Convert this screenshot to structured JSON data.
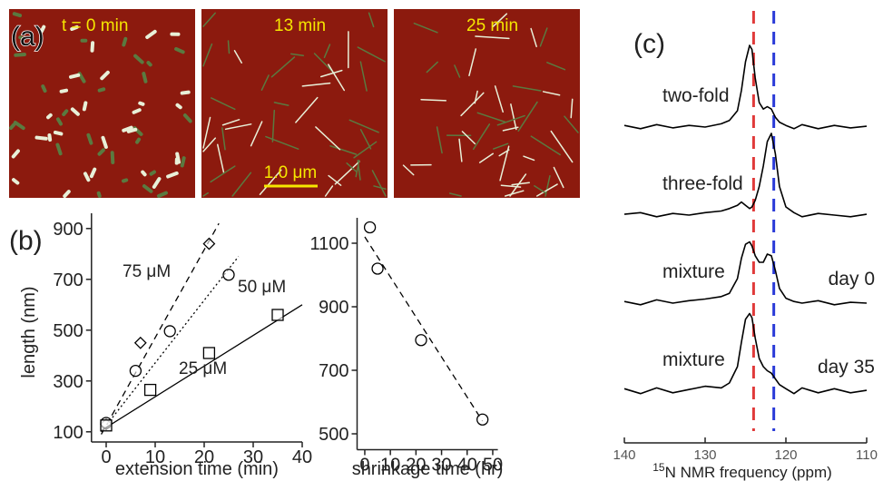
{
  "panel_labels": [
    "(a)",
    "(b)",
    "(c)"
  ],
  "images": [
    {
      "label": "t = 0 min"
    },
    {
      "label": "13 min"
    },
    {
      "label": "25 min"
    }
  ],
  "scale_bar": "1.0 μm",
  "chart_data": [
    {
      "type": "scatter",
      "x_label": "extension time (min)",
      "y_label": "length (nm)",
      "xlim": [
        -3,
        40
      ],
      "xticks": [
        0,
        10,
        20,
        30,
        40
      ],
      "ylim": [
        60,
        960
      ],
      "yticks": [
        100,
        300,
        500,
        700,
        900
      ],
      "series": [
        {
          "name": "75 μM",
          "marker": "diamond",
          "color": "#000000",
          "x": [
            0,
            7,
            21
          ],
          "values": [
            130,
            450,
            840
          ],
          "fit": {
            "dash": "dashed",
            "x": [
              -1,
              23
            ],
            "values": [
              90,
              920
            ]
          }
        },
        {
          "name": "50 μM",
          "marker": "circle",
          "color": "#000000",
          "x": [
            0,
            6,
            13,
            25
          ],
          "values": [
            135,
            340,
            496,
            718
          ],
          "fit": {
            "dash": "dotted",
            "x": [
              -1,
              27
            ],
            "values": [
              100,
              790
            ]
          }
        },
        {
          "name": "25 μM",
          "marker": "square",
          "color": "#000000",
          "x": [
            0,
            9,
            21,
            35
          ],
          "values": [
            125,
            265,
            410,
            560
          ],
          "fit": {
            "dash": "solid",
            "x": [
              -1,
              40
            ],
            "values": [
              105,
              600
            ]
          }
        }
      ]
    },
    {
      "type": "scatter",
      "x_label": "shrinkage time (hr)",
      "xlim": [
        -3,
        52
      ],
      "xticks": [
        0,
        10,
        20,
        30,
        40,
        50
      ],
      "ylim": [
        450,
        1180
      ],
      "yticks": [
        500,
        700,
        900,
        1100
      ],
      "series": [
        {
          "marker": "circle",
          "color": "#000000",
          "x": [
            2,
            5,
            22,
            46
          ],
          "values": [
            1150,
            1020,
            795,
            545
          ],
          "fit": {
            "dash": "dashed",
            "x": [
              0,
              46
            ],
            "values": [
              1120,
              540
            ]
          }
        }
      ]
    },
    {
      "type": "line",
      "x_label_sup": "15",
      "x_label": "N NMR frequency (ppm)",
      "xlim": [
        140,
        110
      ],
      "xticks": [
        140,
        130,
        120,
        110
      ],
      "ref_lines": [
        {
          "x": 124,
          "color": "#e03a3a"
        },
        {
          "x": 121.5,
          "color": "#2a3ad8"
        }
      ],
      "x": [
        140,
        138,
        136,
        134,
        132,
        130,
        128,
        127,
        126,
        125.5,
        125,
        124.5,
        124.2,
        123.8,
        123.3,
        122.8,
        122.3,
        121.8,
        121.3,
        120.8,
        120,
        119,
        118,
        116,
        114,
        112,
        110
      ],
      "series": [
        {
          "name": "two-fold",
          "color": "#000000",
          "values": [
            0.02,
            -0.02,
            0.03,
            -0.01,
            0.02,
            0.0,
            0.04,
            0.08,
            0.2,
            0.45,
            0.8,
            1.0,
            0.95,
            0.6,
            0.3,
            0.22,
            0.25,
            0.22,
            0.12,
            0.06,
            0.02,
            -0.02,
            0.03,
            -0.02,
            0.02,
            -0.01,
            0.01
          ]
        },
        {
          "name": "three-fold",
          "color": "#000000",
          "values": [
            0.01,
            0.03,
            -0.02,
            0.02,
            0.0,
            0.03,
            0.05,
            0.08,
            0.12,
            0.16,
            0.12,
            0.08,
            0.1,
            0.18,
            0.35,
            0.6,
            0.9,
            1.0,
            0.75,
            0.35,
            0.1,
            0.03,
            -0.02,
            0.02,
            0.0,
            -0.02,
            0.01
          ]
        },
        {
          "name": "mixture",
          "annotation": "day 0",
          "color": "#000000",
          "values": [
            0.02,
            -0.02,
            0.04,
            0.0,
            0.03,
            0.05,
            0.08,
            0.12,
            0.3,
            0.55,
            0.72,
            0.75,
            0.7,
            0.58,
            0.5,
            0.5,
            0.6,
            0.58,
            0.4,
            0.18,
            0.06,
            0.02,
            0.0,
            0.03,
            -0.02,
            0.01,
            0.0
          ]
        },
        {
          "name": "mixture",
          "annotation": "day 35",
          "color": "#000000",
          "values": [
            0.03,
            -0.03,
            0.04,
            -0.02,
            0.02,
            0.06,
            0.04,
            0.1,
            0.3,
            0.6,
            0.88,
            0.95,
            0.9,
            0.65,
            0.4,
            0.3,
            0.25,
            0.22,
            0.15,
            0.08,
            0.03,
            -0.03,
            0.04,
            -0.02,
            0.03,
            -0.02,
            0.01
          ]
        }
      ]
    }
  ]
}
